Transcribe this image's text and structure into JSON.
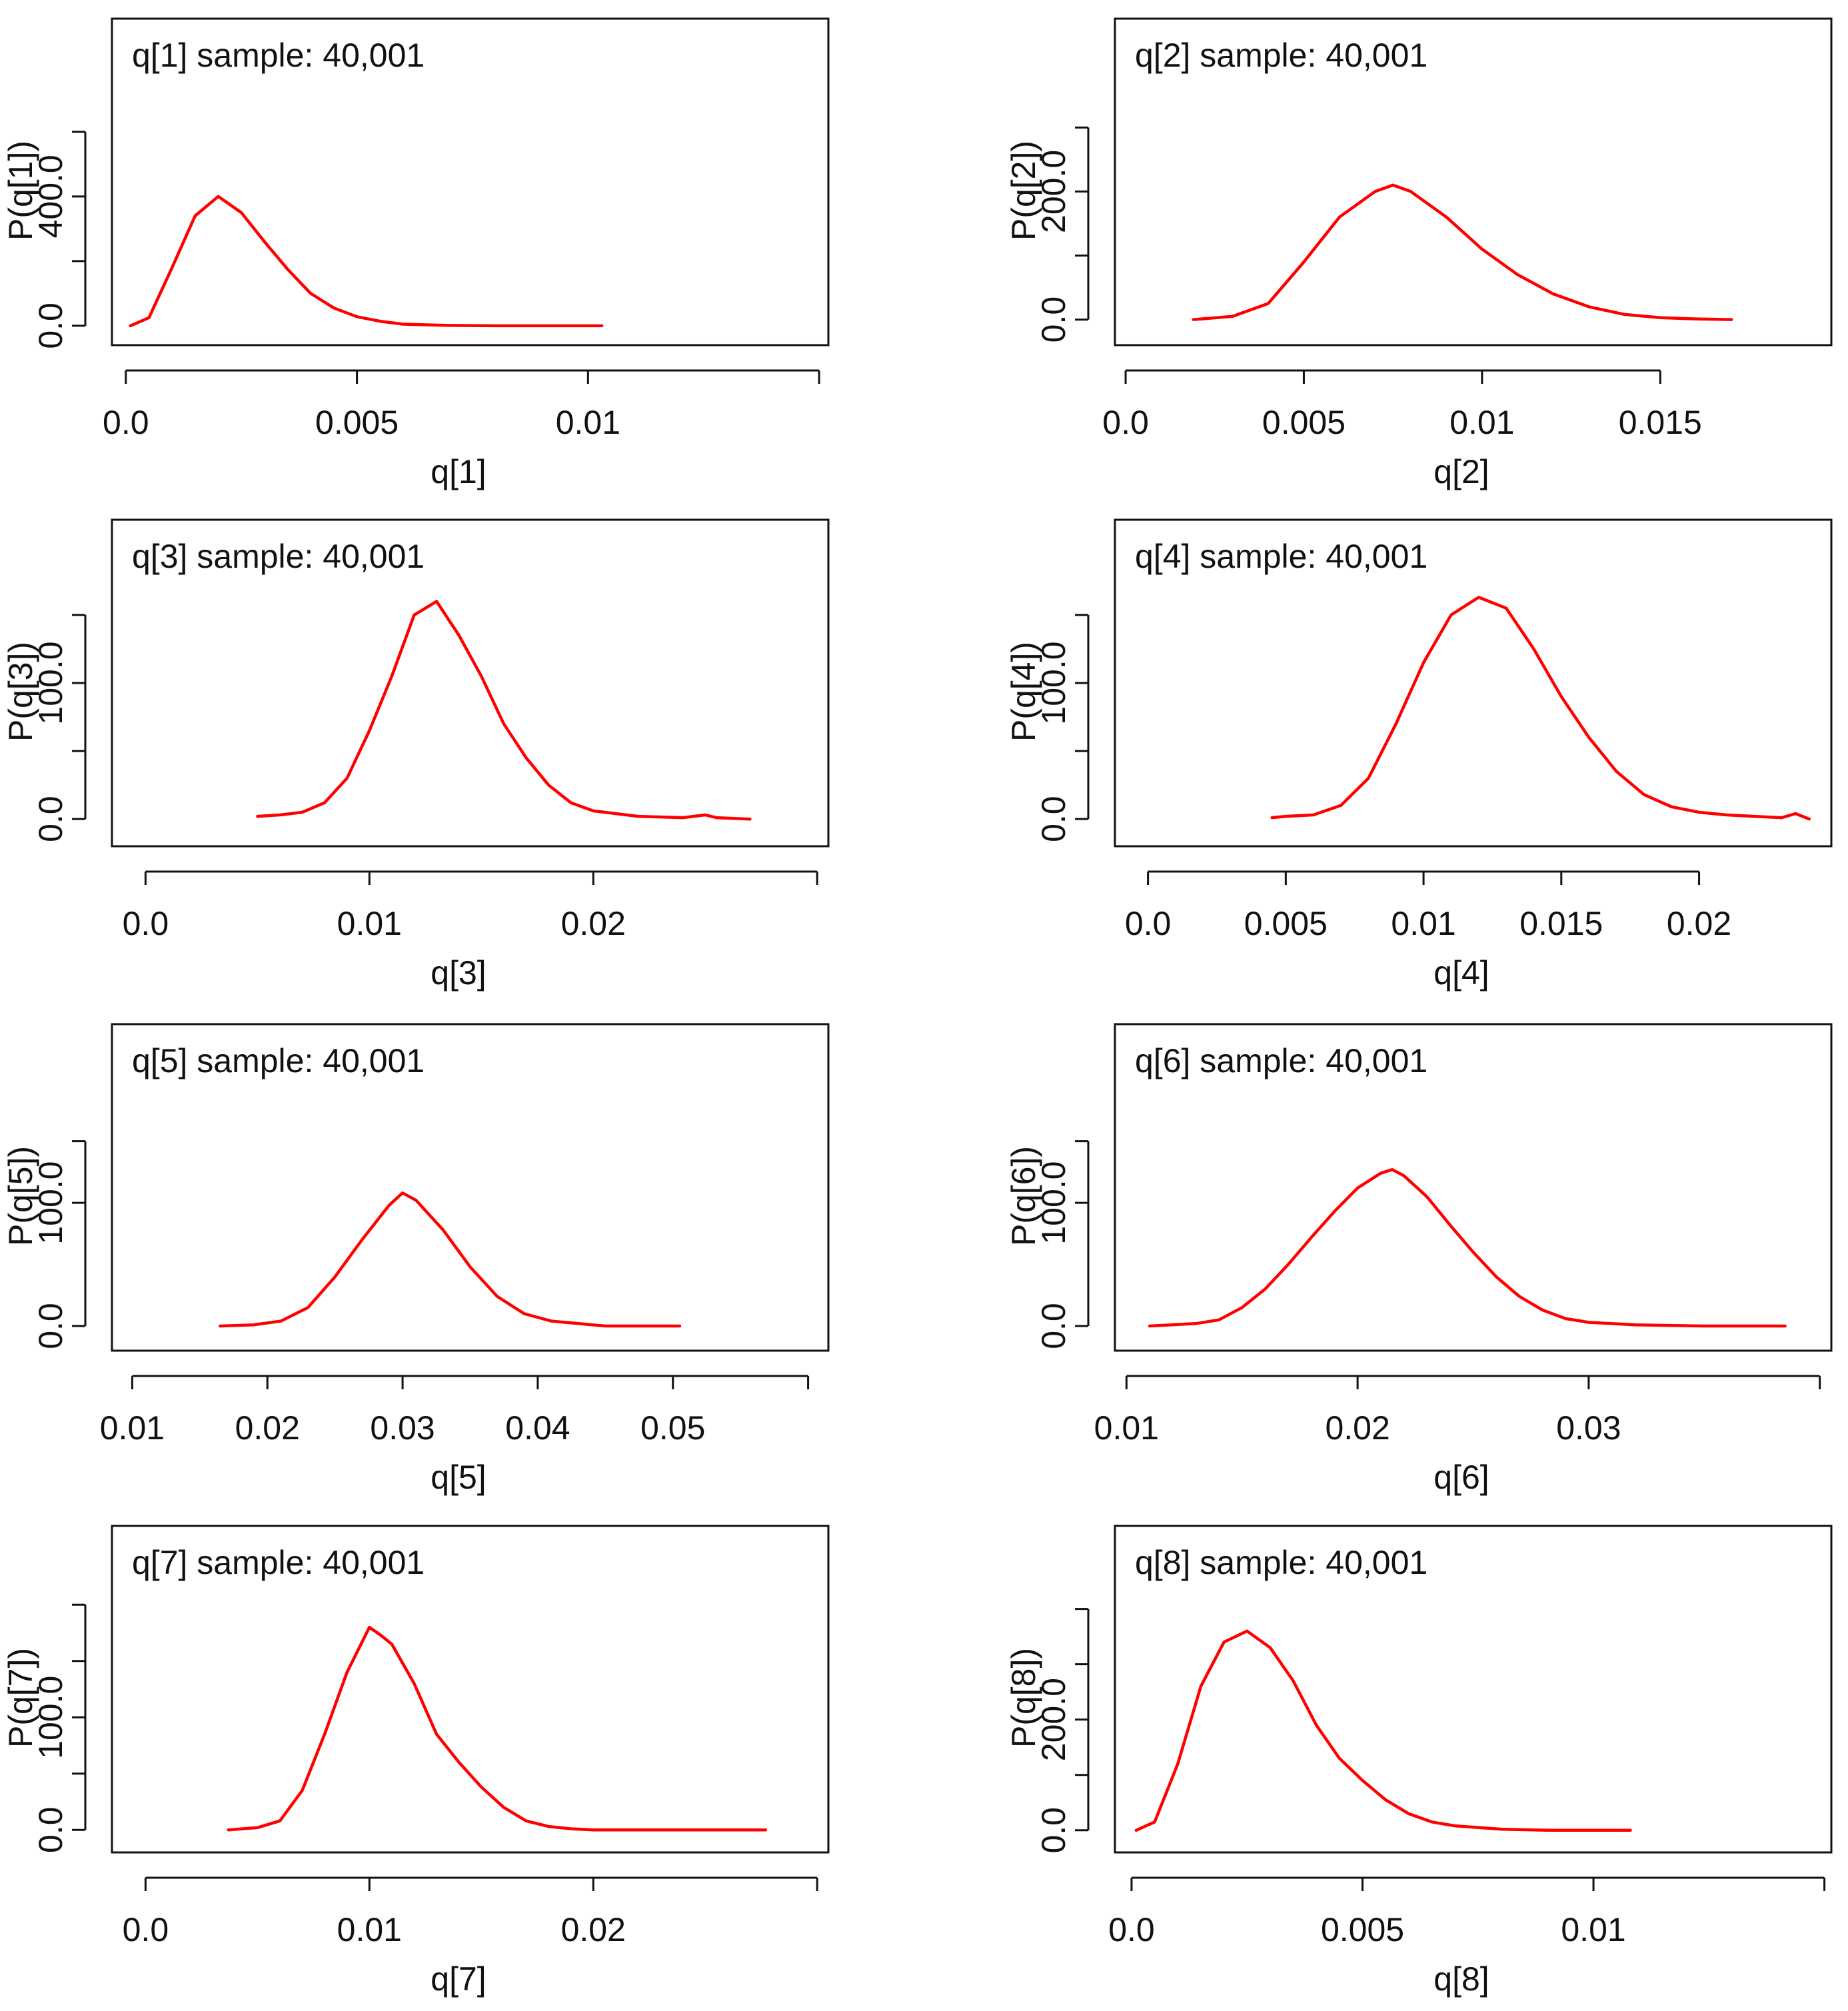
{
  "chart_data": [
    {
      "type": "line",
      "title": "q[1] sample: 40,001",
      "xlabel": "q[1]",
      "ylabel": "P(q[1])",
      "xlim": [
        -0.0003,
        0.0152
      ],
      "ylim": [
        -60,
        950
      ],
      "xticks": [
        0.0,
        0.005,
        0.01,
        0.015
      ],
      "xtick_labels": [
        "0.0",
        "0.005",
        "0.01",
        ""
      ],
      "yticks": [
        0,
        200,
        400,
        600
      ],
      "ytick_labels": [
        "0.0",
        "",
        "400.0",
        ""
      ],
      "series": [
        {
          "name": "q[1]",
          "x": [
            0.0001,
            0.0005,
            0.001,
            0.0015,
            0.002,
            0.0025,
            0.003,
            0.0035,
            0.004,
            0.0045,
            0.005,
            0.0055,
            0.006,
            0.007,
            0.008,
            0.009,
            0.0103
          ],
          "y": [
            0,
            25,
            180,
            340,
            400,
            350,
            260,
            175,
            100,
            55,
            28,
            14,
            5,
            1,
            0,
            0,
            0
          ]
        }
      ]
    },
    {
      "type": "line",
      "title": "q[2] sample: 40,001",
      "xlabel": "q[2]",
      "ylabel": "P(q[2])",
      "xlim": [
        -0.0003,
        0.0198
      ],
      "ylim": [
        -40,
        470
      ],
      "xticks": [
        0.0,
        0.005,
        0.01,
        0.015
      ],
      "xtick_labels": [
        "0.0",
        "0.005",
        "0.01",
        "0.015"
      ],
      "yticks": [
        0,
        100,
        200,
        300
      ],
      "ytick_labels": [
        "0.0",
        "",
        "200.0",
        ""
      ],
      "series": [
        {
          "name": "q[2]",
          "x": [
            0.0019,
            0.003,
            0.004,
            0.005,
            0.006,
            0.007,
            0.0075,
            0.008,
            0.009,
            0.01,
            0.011,
            0.012,
            0.013,
            0.014,
            0.015,
            0.016,
            0.017
          ],
          "y": [
            0,
            5,
            25,
            90,
            160,
            200,
            210,
            200,
            160,
            110,
            70,
            40,
            20,
            8,
            3,
            1,
            0
          ]
        }
      ]
    },
    {
      "type": "line",
      "title": "q[3] sample: 40,001",
      "xlabel": "q[3]",
      "ylabel": "P(q[3])",
      "xlim": [
        -0.0015,
        0.0305
      ],
      "ylim": [
        -20,
        220
      ],
      "xticks": [
        0.0,
        0.01,
        0.02,
        0.03
      ],
      "xtick_labels": [
        "0.0",
        "0.01",
        "0.02",
        ""
      ],
      "yticks": [
        0,
        50,
        100,
        150
      ],
      "ytick_labels": [
        "0.0",
        "",
        "100.0",
        ""
      ],
      "series": [
        {
          "name": "q[3]",
          "x": [
            0.005,
            0.006,
            0.007,
            0.008,
            0.009,
            0.01,
            0.011,
            0.012,
            0.013,
            0.014,
            0.015,
            0.016,
            0.017,
            0.018,
            0.019,
            0.02,
            0.022,
            0.024,
            0.025,
            0.0255,
            0.027
          ],
          "y": [
            2,
            3,
            5,
            12,
            30,
            65,
            105,
            150,
            160,
            135,
            105,
            70,
            45,
            25,
            12,
            6,
            2,
            1,
            3,
            1,
            0
          ]
        }
      ]
    },
    {
      "type": "line",
      "title": "q[4] sample: 40,001",
      "xlabel": "q[4]",
      "ylabel": "P(q[4])",
      "xlim": [
        -0.0012,
        0.0248
      ],
      "ylim": [
        -20,
        220
      ],
      "xticks": [
        0.0,
        0.005,
        0.01,
        0.015,
        0.02
      ],
      "xtick_labels": [
        "0.0",
        "0.005",
        "0.01",
        "0.015",
        "0.02"
      ],
      "yticks": [
        0,
        50,
        100,
        150
      ],
      "ytick_labels": [
        "0.0",
        "",
        "100.0",
        ""
      ],
      "series": [
        {
          "name": "q[4]",
          "x": [
            0.0045,
            0.005,
            0.006,
            0.007,
            0.008,
            0.009,
            0.01,
            0.011,
            0.012,
            0.013,
            0.014,
            0.015,
            0.016,
            0.017,
            0.018,
            0.019,
            0.02,
            0.021,
            0.022,
            0.023,
            0.0235,
            0.024
          ],
          "y": [
            1,
            2,
            3,
            10,
            30,
            70,
            115,
            150,
            163,
            155,
            125,
            90,
            60,
            35,
            18,
            9,
            5,
            3,
            2,
            1,
            4,
            0
          ]
        }
      ]
    },
    {
      "type": "line",
      "title": "q[5] sample: 40,001",
      "xlabel": "q[5]",
      "ylabel": "P(q[5])",
      "xlim": [
        0.0085,
        0.0615
      ],
      "ylim": [
        -20,
        245
      ],
      "xticks": [
        0.01,
        0.02,
        0.03,
        0.04,
        0.05,
        0.06
      ],
      "xtick_labels": [
        "0.01",
        "0.02",
        "0.03",
        "0.04",
        "0.05",
        ""
      ],
      "yticks": [
        0,
        100,
        150
      ],
      "ytick_labels": [
        "0.0",
        "100.0",
        ""
      ],
      "series": [
        {
          "name": "q[5]",
          "x": [
            0.0165,
            0.019,
            0.021,
            0.023,
            0.025,
            0.027,
            0.029,
            0.03,
            0.031,
            0.033,
            0.035,
            0.037,
            0.039,
            0.041,
            0.043,
            0.045,
            0.05,
            0.0505
          ],
          "y": [
            0,
            1,
            4,
            15,
            40,
            70,
            98,
            108,
            102,
            78,
            48,
            24,
            10,
            4,
            2,
            0,
            0,
            0
          ]
        }
      ]
    },
    {
      "type": "line",
      "title": "q[6] sample: 40,001",
      "xlabel": "q[6]",
      "ylabel": "P(q[6])",
      "xlim": [
        0.0095,
        0.0405
      ],
      "ylim": [
        -20,
        245
      ],
      "xticks": [
        0.01,
        0.02,
        0.03,
        0.04
      ],
      "xtick_labels": [
        "0.01",
        "0.02",
        "0.03",
        ""
      ],
      "yticks": [
        0,
        100,
        150
      ],
      "ytick_labels": [
        "0.0",
        "100.0",
        ""
      ],
      "series": [
        {
          "name": "q[6]",
          "x": [
            0.011,
            0.013,
            0.014,
            0.015,
            0.016,
            0.017,
            0.018,
            0.019,
            0.02,
            0.021,
            0.0215,
            0.022,
            0.023,
            0.024,
            0.025,
            0.026,
            0.027,
            0.028,
            0.029,
            0.03,
            0.032,
            0.035,
            0.0385
          ],
          "y": [
            0,
            2,
            5,
            15,
            30,
            50,
            72,
            93,
            112,
            124,
            127,
            122,
            105,
            82,
            60,
            40,
            24,
            13,
            6,
            3,
            1,
            0,
            0
          ]
        }
      ]
    },
    {
      "type": "line",
      "title": "q[7] sample: 40,001",
      "xlabel": "q[7]",
      "ylabel": "P(q[7])",
      "xlim": [
        -0.0015,
        0.0305
      ],
      "ylim": [
        -20,
        270
      ],
      "xticks": [
        0.0,
        0.01,
        0.02,
        0.03
      ],
      "xtick_labels": [
        "0.0",
        "0.01",
        "0.02",
        ""
      ],
      "yticks": [
        0,
        50,
        100,
        150,
        200
      ],
      "ytick_labels": [
        "0.0",
        "",
        "100.0",
        "",
        ""
      ],
      "series": [
        {
          "name": "q[7]",
          "x": [
            0.0037,
            0.005,
            0.006,
            0.007,
            0.008,
            0.009,
            0.0095,
            0.01,
            0.0105,
            0.011,
            0.012,
            0.013,
            0.014,
            0.015,
            0.016,
            0.017,
            0.018,
            0.019,
            0.02,
            0.022,
            0.025,
            0.0277
          ],
          "y": [
            0,
            2,
            8,
            35,
            85,
            140,
            160,
            180,
            173,
            165,
            130,
            85,
            60,
            38,
            20,
            8,
            3,
            1,
            0,
            0,
            0,
            0
          ]
        }
      ]
    },
    {
      "type": "line",
      "title": "q[8] sample: 40,001",
      "xlabel": "q[8]",
      "ylabel": "P(q[8])",
      "xlim": [
        -0.00036,
        0.01515
      ],
      "ylim": [
        -40,
        550
      ],
      "xticks": [
        0.0,
        0.005,
        0.01,
        0.015
      ],
      "xtick_labels": [
        "0.0",
        "0.005",
        "0.01",
        ""
      ],
      "yticks": [
        0,
        100,
        200,
        300,
        400
      ],
      "ytick_labels": [
        "0.0",
        "",
        "200.0",
        "",
        ""
      ],
      "series": [
        {
          "name": "q[8]",
          "x": [
            0.0001,
            0.0005,
            0.001,
            0.0015,
            0.002,
            0.0025,
            0.003,
            0.0035,
            0.004,
            0.0045,
            0.005,
            0.0055,
            0.006,
            0.0065,
            0.007,
            0.008,
            0.009,
            0.0108
          ],
          "y": [
            0,
            15,
            120,
            260,
            340,
            360,
            330,
            270,
            190,
            130,
            90,
            55,
            30,
            15,
            8,
            2,
            0,
            0
          ]
        }
      ]
    }
  ],
  "colors": {
    "curve": "#ff0000",
    "axes": "#111111",
    "background": "#ffffff"
  }
}
